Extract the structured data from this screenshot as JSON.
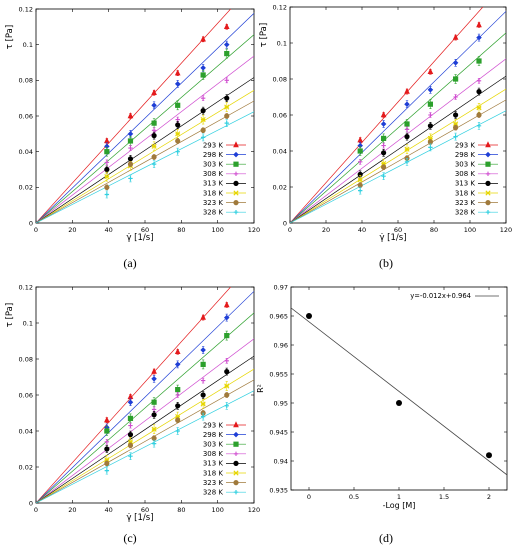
{
  "figure": {
    "panel_labels": [
      "(a)",
      "(b)",
      "(c)",
      "(d)"
    ]
  },
  "chart_data": [
    {
      "type": "scatter",
      "panel": "(a)",
      "xlabel": "γ̇ [1/s]",
      "ylabel": "τ [Pa]",
      "xlim": [
        0,
        120
      ],
      "ylim": [
        0,
        0.12
      ],
      "xticks": [
        0,
        20,
        40,
        60,
        80,
        100,
        120
      ],
      "xtick_labels": [
        "0",
        "20",
        "40",
        "60",
        "80",
        "100",
        "120"
      ],
      "yticks": [
        0,
        0.02,
        0.04,
        0.06,
        0.08,
        0.1,
        0.12
      ],
      "ytick_labels": [
        "0",
        "0.02",
        "0.04",
        "0.06",
        "0.08",
        "0.1",
        "0.12"
      ],
      "grid": false,
      "legend": "bottom-right",
      "x": [
        39,
        52,
        65,
        78,
        92,
        105
      ],
      "series": [
        {
          "name": "293 K",
          "color": "#e41a1c",
          "values": [
            0.046,
            0.06,
            0.073,
            0.084,
            0.103,
            0.11
          ],
          "slope": 0.00112
        },
        {
          "name": "298 K",
          "color": "#1f3fd6",
          "values": [
            0.043,
            0.05,
            0.066,
            0.078,
            0.087,
            0.1
          ],
          "slope": 0.00098
        },
        {
          "name": "303 K",
          "color": "#2ca02c",
          "values": [
            0.04,
            0.046,
            0.056,
            0.066,
            0.083,
            0.095
          ],
          "slope": 0.00088
        },
        {
          "name": "308 K",
          "color": "#d04ed0",
          "values": [
            0.034,
            0.042,
            0.052,
            0.058,
            0.07,
            0.08
          ],
          "slope": 0.00078
        },
        {
          "name": "313 K",
          "color": "#000000",
          "values": [
            0.03,
            0.036,
            0.049,
            0.055,
            0.063,
            0.07
          ],
          "slope": 0.00068
        },
        {
          "name": "318 K",
          "color": "#e6d600",
          "values": [
            0.026,
            0.032,
            0.043,
            0.05,
            0.058,
            0.065
          ],
          "slope": 0.00062
        },
        {
          "name": "323 K",
          "color": "#a07a3c",
          "values": [
            0.02,
            0.033,
            0.037,
            0.046,
            0.052,
            0.06
          ],
          "slope": 0.00057
        },
        {
          "name": "328 K",
          "color": "#33d0e0",
          "values": [
            0.016,
            0.025,
            0.033,
            0.04,
            0.048,
            0.056
          ],
          "slope": 0.00052
        }
      ]
    },
    {
      "type": "scatter",
      "panel": "(b)",
      "xlabel": "γ̇ [1/s]",
      "ylabel": "τ [Pa]",
      "xlim": [
        0,
        120
      ],
      "ylim": [
        0,
        0.12
      ],
      "xticks": [
        0,
        20,
        40,
        60,
        80,
        100,
        120
      ],
      "xtick_labels": [
        "0",
        "20",
        "40",
        "60",
        "80",
        "100",
        "120"
      ],
      "yticks": [
        0,
        0.02,
        0.04,
        0.06,
        0.08,
        0.1,
        0.12
      ],
      "ytick_labels": [
        "0",
        "0.02",
        "0.04",
        "0.06",
        "0.08",
        "0.1",
        "0.12"
      ],
      "grid": false,
      "legend": "bottom-right",
      "x": [
        39,
        52,
        65,
        78,
        92,
        105
      ],
      "series": [
        {
          "name": "293 K",
          "color": "#e41a1c",
          "values": [
            0.046,
            0.06,
            0.073,
            0.084,
            0.103,
            0.11
          ],
          "slope": 0.00112
        },
        {
          "name": "298 K",
          "color": "#1f3fd6",
          "values": [
            0.043,
            0.055,
            0.066,
            0.074,
            0.089,
            0.103
          ],
          "slope": 0.00098
        },
        {
          "name": "303 K",
          "color": "#2ca02c",
          "values": [
            0.04,
            0.047,
            0.055,
            0.066,
            0.08,
            0.09
          ],
          "slope": 0.00088
        },
        {
          "name": "308 K",
          "color": "#d04ed0",
          "values": [
            0.034,
            0.043,
            0.052,
            0.06,
            0.07,
            0.079
          ],
          "slope": 0.00076
        },
        {
          "name": "313 K",
          "color": "#000000",
          "values": [
            0.027,
            0.039,
            0.048,
            0.054,
            0.06,
            0.073
          ],
          "slope": 0.00068
        },
        {
          "name": "318 K",
          "color": "#e6d600",
          "values": [
            0.024,
            0.033,
            0.041,
            0.047,
            0.055,
            0.064
          ],
          "slope": 0.00062
        },
        {
          "name": "323 K",
          "color": "#a07a3c",
          "values": [
            0.021,
            0.031,
            0.036,
            0.045,
            0.053,
            0.06
          ],
          "slope": 0.00057
        },
        {
          "name": "328 K",
          "color": "#33d0e0",
          "values": [
            0.018,
            0.026,
            0.034,
            0.042,
            0.048,
            0.054
          ],
          "slope": 0.00052
        }
      ]
    },
    {
      "type": "scatter",
      "panel": "(c)",
      "xlabel": "γ̇ [1/s]",
      "ylabel": "τ [Pa]",
      "xlim": [
        0,
        120
      ],
      "ylim": [
        0,
        0.12
      ],
      "xticks": [
        0,
        20,
        40,
        60,
        80,
        100,
        120
      ],
      "xtick_labels": [
        "0",
        "20",
        "40",
        "60",
        "80",
        "100",
        "120"
      ],
      "yticks": [
        0,
        0.02,
        0.04,
        0.06,
        0.08,
        0.1,
        0.12
      ],
      "ytick_labels": [
        "0",
        "0.02",
        "0.04",
        "0.06",
        "0.08",
        "0.1",
        "0.12"
      ],
      "grid": false,
      "legend": "bottom-right",
      "x": [
        39,
        52,
        65,
        78,
        92,
        105
      ],
      "series": [
        {
          "name": "293 K",
          "color": "#e41a1c",
          "values": [
            0.046,
            0.059,
            0.073,
            0.084,
            0.103,
            0.11
          ],
          "slope": 0.00112
        },
        {
          "name": "298 K",
          "color": "#1f3fd6",
          "values": [
            0.042,
            0.056,
            0.069,
            0.077,
            0.085,
            0.103
          ],
          "slope": 0.00098
        },
        {
          "name": "303 K",
          "color": "#2ca02c",
          "values": [
            0.04,
            0.047,
            0.056,
            0.063,
            0.077,
            0.093
          ],
          "slope": 0.00088
        },
        {
          "name": "308 K",
          "color": "#d04ed0",
          "values": [
            0.034,
            0.043,
            0.052,
            0.06,
            0.068,
            0.079
          ],
          "slope": 0.00076
        },
        {
          "name": "313 K",
          "color": "#000000",
          "values": [
            0.03,
            0.038,
            0.049,
            0.054,
            0.06,
            0.073
          ],
          "slope": 0.00068
        },
        {
          "name": "318 K",
          "color": "#e6d600",
          "values": [
            0.024,
            0.034,
            0.041,
            0.048,
            0.055,
            0.065
          ],
          "slope": 0.00062
        },
        {
          "name": "323 K",
          "color": "#a07a3c",
          "values": [
            0.022,
            0.032,
            0.036,
            0.046,
            0.05,
            0.06
          ],
          "slope": 0.00057
        },
        {
          "name": "328 K",
          "color": "#33d0e0",
          "values": [
            0.018,
            0.026,
            0.033,
            0.04,
            0.048,
            0.054
          ],
          "slope": 0.00052
        }
      ]
    },
    {
      "type": "scatter",
      "panel": "(d)",
      "xlabel": "-Log [M]",
      "ylabel": "R²",
      "xlim": [
        -0.2,
        2.2
      ],
      "ylim": [
        0.935,
        0.97
      ],
      "xticks": [
        0,
        0.5,
        1,
        1.5,
        2
      ],
      "xtick_labels": [
        "0",
        "0.5",
        "1",
        "1.5",
        "2"
      ],
      "yticks": [
        0.935,
        0.94,
        0.945,
        0.95,
        0.955,
        0.96,
        0.965,
        0.97
      ],
      "ytick_labels": [
        "0.935",
        "0.94",
        "0.945",
        "0.95",
        "0.955",
        "0.96",
        "0.965",
        "0.97"
      ],
      "grid": false,
      "legend": "top-right",
      "points": [
        {
          "x": 0,
          "y": 0.965
        },
        {
          "x": 1,
          "y": 0.95
        },
        {
          "x": 2,
          "y": 0.941
        }
      ],
      "fit": {
        "name": "y=-0.012x+0.964",
        "slope": -0.012,
        "intercept": 0.964
      }
    }
  ]
}
